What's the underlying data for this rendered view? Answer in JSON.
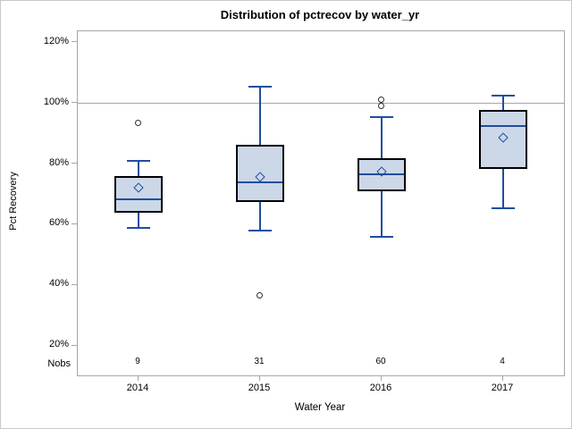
{
  "chart_data": {
    "type": "boxplot",
    "title": "Distribution of pctrecov by water_yr",
    "xlabel": "Water Year",
    "ylabel": "Pct Recovery",
    "nobs_label": "Nobs",
    "ytick_suffix": "%",
    "yticks": [
      120,
      100,
      80,
      60,
      40,
      20
    ],
    "ylim": [
      10.3,
      123.8
    ],
    "reference_line": 100,
    "grid": "off",
    "legend": "none",
    "groups": [
      {
        "year": "2014",
        "nobs": "9",
        "whisker_low": 59,
        "q1": 64,
        "median": 68.5,
        "q3": 76,
        "mean": 72,
        "whisker_high": 81,
        "outliers": [
          93.5
        ]
      },
      {
        "year": "2015",
        "nobs": "31",
        "whisker_low": 58,
        "q1": 67.5,
        "median": 74,
        "q3": 86.5,
        "mean": 75.5,
        "whisker_high": 105.5,
        "outliers": [
          36.5
        ]
      },
      {
        "year": "2016",
        "nobs": "60",
        "whisker_low": 56,
        "q1": 71,
        "median": 76.5,
        "q3": 82,
        "mean": 77.5,
        "whisker_high": 95.5,
        "outliers": [
          99,
          101
        ]
      },
      {
        "year": "2017",
        "nobs": "4",
        "whisker_low": 65.5,
        "q1": 78.5,
        "median": 92.5,
        "q3": 98,
        "mean": 88.5,
        "whisker_high": 102.5,
        "outliers": []
      }
    ]
  },
  "colors": {
    "box_fill": "#ccd7e8",
    "box_border": "#000000",
    "line_blue": "#1f4e9e",
    "frame_gray": "#a6a6a6",
    "outlier_stroke": "#2f2f2f",
    "outlier_fill": "#ffffff"
  }
}
